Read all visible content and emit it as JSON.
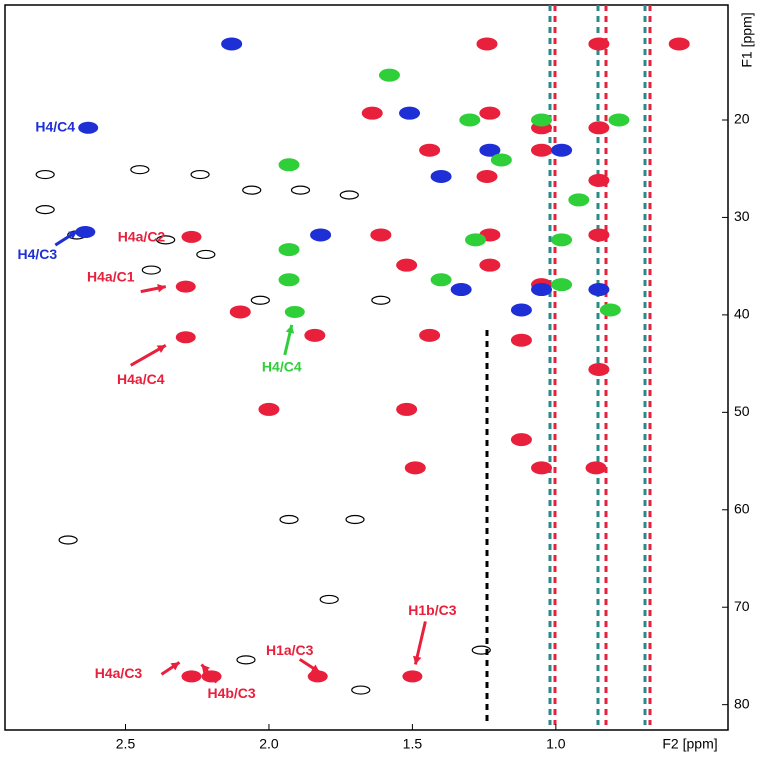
{
  "chart_data": {
    "type": "spectrum",
    "x_label": "F2 [ppm]",
    "y_label": "F1 [ppm]",
    "xlim": [
      2.92,
      0.4
    ],
    "ylim": [
      8.2,
      82.6
    ],
    "xticks": [
      2.5,
      {
        "value": 2,
        "label": "2.0"
      },
      1.5,
      {
        "value": 1,
        "label": "1.0"
      }
    ],
    "yticks": [
      20,
      30,
      40,
      50,
      60,
      70,
      80
    ],
    "series": [
      {
        "color": "#000000",
        "x": [
          2.78,
          2.78,
          2.67,
          2.45,
          2.36,
          2.24,
          2.06,
          1.89,
          1.72,
          2.03,
          1.61,
          1.93,
          1.7,
          2.7,
          1.26,
          1.68,
          2.08,
          2.41,
          2.22,
          1.79
        ],
        "values": [
          25.6,
          29.2,
          31.8,
          25.1,
          32.3,
          25.6,
          27.2,
          27.2,
          27.7,
          38.5,
          38.5,
          61.0,
          61.0,
          63.1,
          74.4,
          78.5,
          75.4,
          35.4,
          33.8,
          69.2
        ]
      },
      {
        "color": "#e8203c",
        "x": [
          1.24,
          0.85,
          0.57,
          1.64,
          1.23,
          1.05,
          0.85,
          1.44,
          1.05,
          1.24,
          0.85,
          1.61,
          1.23,
          0.85,
          1.52,
          1.23,
          1.05,
          2.1,
          1.84,
          1.44,
          1.12,
          0.85,
          1.52,
          1.12,
          1.49,
          1.05,
          0.86,
          2.0
        ],
        "values": [
          12.2,
          12.2,
          12.2,
          19.3,
          19.3,
          20.8,
          20.8,
          23.1,
          23.1,
          25.8,
          26.2,
          31.8,
          31.8,
          31.8,
          34.9,
          34.9,
          36.9,
          39.7,
          42.1,
          42.1,
          42.6,
          45.6,
          49.7,
          52.8,
          55.7,
          55.7,
          55.7,
          49.7
        ]
      },
      {
        "color": "#1f2fd6",
        "x": [
          2.13,
          1.51,
          1.23,
          1.4,
          0.98,
          1.82,
          1.33,
          1.05,
          0.85,
          1.12
        ],
        "values": [
          12.2,
          19.3,
          23.1,
          25.8,
          23.1,
          31.8,
          37.4,
          37.4,
          37.4,
          39.5
        ]
      },
      {
        "color": "#2fcf3a",
        "x": [
          1.58,
          1.93,
          1.3,
          1.05,
          0.78,
          1.19,
          0.92,
          1.28,
          0.98,
          1.93,
          1.4,
          0.98,
          0.81,
          1.93
        ],
        "values": [
          15.4,
          24.6,
          20.0,
          20.0,
          20.0,
          24.1,
          28.2,
          32.3,
          32.3,
          36.4,
          36.4,
          36.9,
          39.5,
          33.3
        ]
      }
    ],
    "annotations": [
      {
        "text": "H4/C4",
        "color": "#1f2fd6",
        "x": 2.63,
        "y": 20.8
      },
      {
        "text": "H4/C3",
        "color": "#1f2fd6",
        "x": 2.64,
        "y": 31.5
      },
      {
        "text": "H4a/C2",
        "color": "#e8203c",
        "x": 2.27,
        "y": 32.0
      },
      {
        "text": "H4a/C1",
        "color": "#e8203c",
        "x": 2.29,
        "y": 37.1
      },
      {
        "text": "H4a/C4",
        "color": "#e8203c",
        "x": 2.29,
        "y": 42.3
      },
      {
        "text": "H4/C4",
        "color": "#2fcf3a",
        "x": 1.91,
        "y": 39.7
      },
      {
        "text": "H1a/C3",
        "color": "#e8203c",
        "x": 1.83,
        "y": 77.1
      },
      {
        "text": "H1b/C3",
        "color": "#e8203c",
        "x": 1.5,
        "y": 77.1
      },
      {
        "text": "H4a/C3",
        "color": "#e8203c",
        "x": 2.27,
        "y": 77.1
      },
      {
        "text": "H4b/C3",
        "color": "#e8203c",
        "x": 2.2,
        "y": 77.1
      }
    ]
  }
}
